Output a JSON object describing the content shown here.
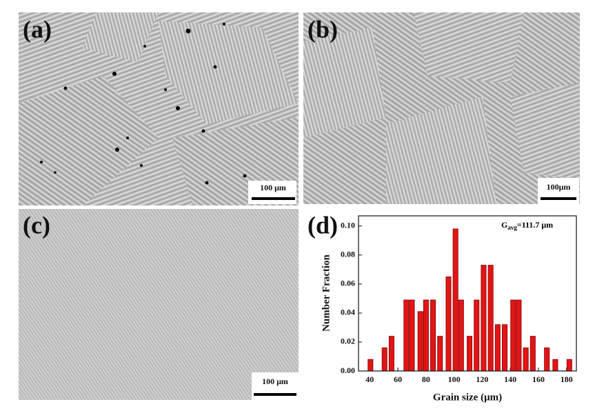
{
  "panels": [
    {
      "label": "(a)",
      "scale_bar": "100 μm"
    },
    {
      "label": "(b)",
      "scale_bar": "100μm"
    },
    {
      "label": "(c)",
      "scale_bar": "100 μm"
    }
  ],
  "chart_data": {
    "type": "bar",
    "panel_label": "(d)",
    "xlabel": "Grain size (μm)",
    "ylabel": "Number Fraction",
    "annotation": {
      "base": "G",
      "sub": "avg",
      "rest": "=111.7 μm"
    },
    "x": [
      40.5,
      50.5,
      55.5,
      66,
      70,
      76,
      80,
      85,
      90,
      96,
      101,
      105,
      111,
      116,
      121,
      126,
      131,
      136,
      142,
      146,
      151,
      156,
      166,
      172,
      182
    ],
    "values": [
      0.008,
      0.016,
      0.024,
      0.049,
      0.049,
      0.041,
      0.049,
      0.049,
      0.024,
      0.065,
      0.098,
      0.049,
      0.024,
      0.049,
      0.073,
      0.073,
      0.032,
      0.032,
      0.049,
      0.049,
      0.016,
      0.024,
      0.016,
      0.008,
      0.008
    ],
    "color": "#e01515",
    "xlim": [
      32,
      187
    ],
    "xticks": [
      40,
      60,
      80,
      100,
      120,
      140,
      160,
      180
    ],
    "ylim": [
      0,
      0.107
    ],
    "yticks": [
      {
        "value": 0,
        "label": "0.00"
      },
      {
        "value": 0.02,
        "label": "0.02"
      },
      {
        "value": 0.04,
        "label": "0.04"
      },
      {
        "value": 0.06,
        "label": "0.06"
      },
      {
        "value": 0.08,
        "label": "0.08"
      },
      {
        "value": 0.1,
        "label": "0.10"
      }
    ]
  }
}
